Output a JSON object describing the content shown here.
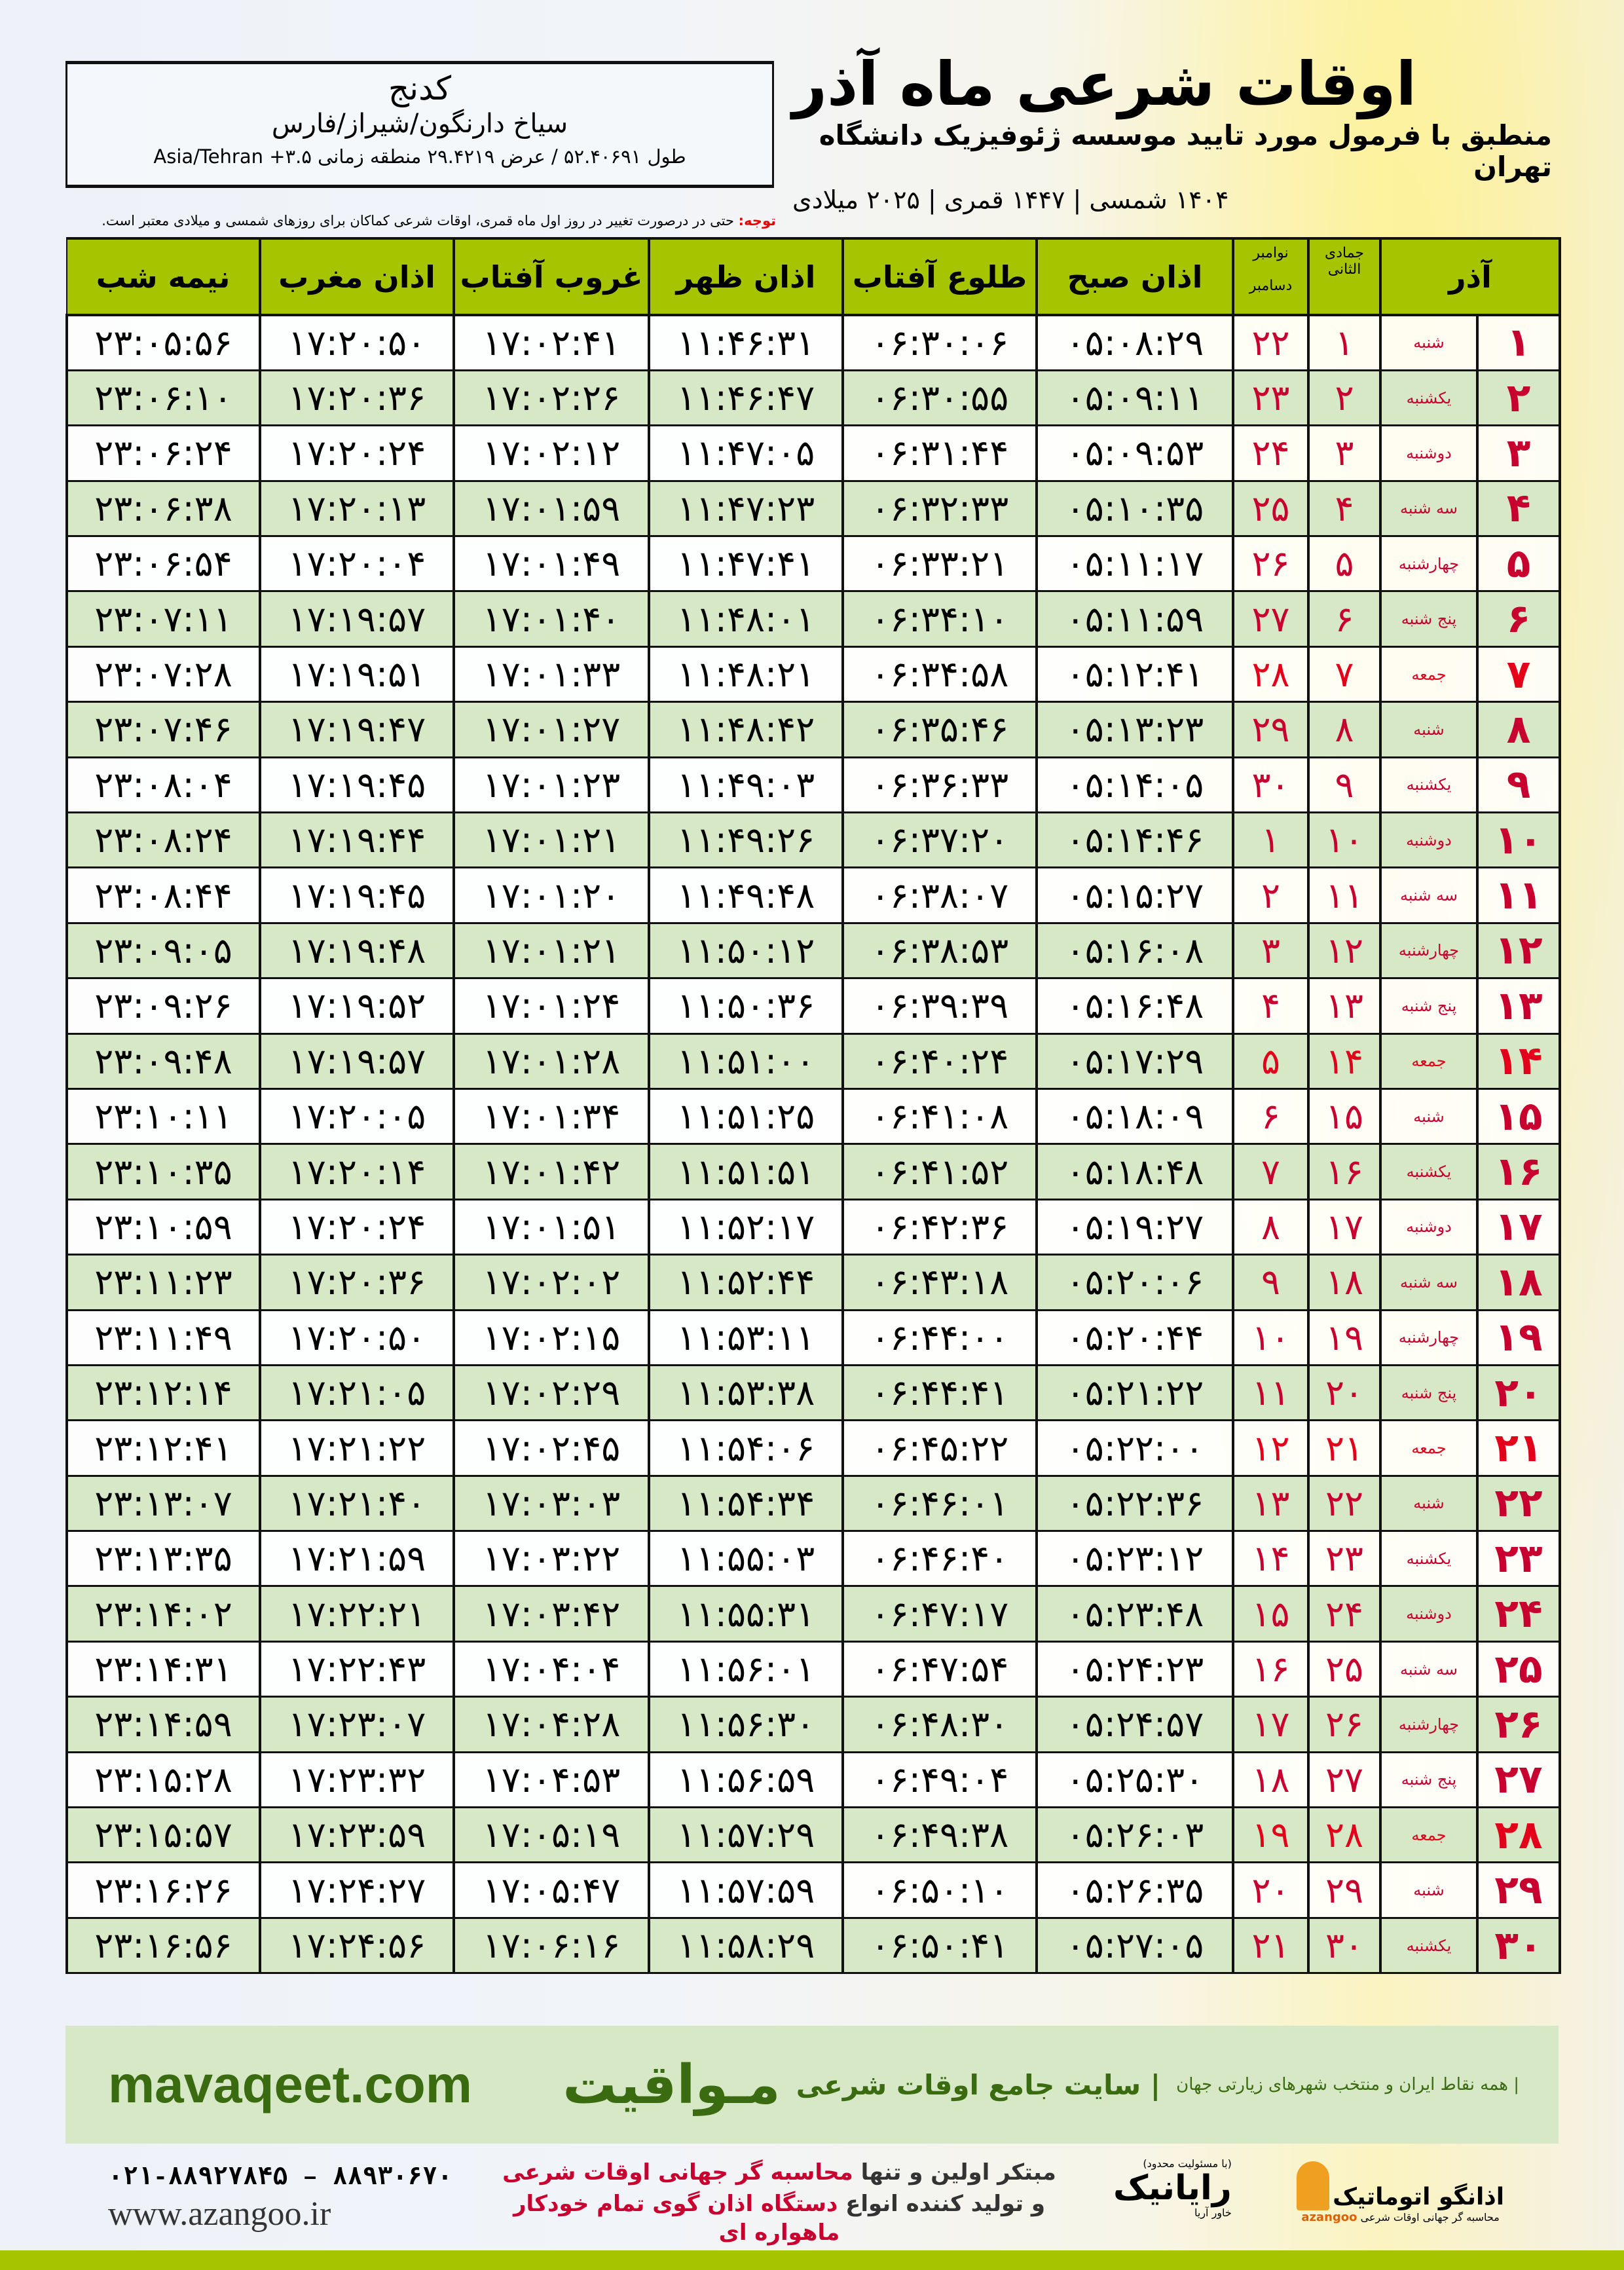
{
  "header": {
    "title": "اوقات شرعی ماه آذر",
    "subtitle": "منطبق با فرمول مورد تایید موسسه ژئوفیزیک دانشگاه تهران",
    "dates": "۱۴۰۴ شمسی | ۱۴۴۷ قمری | ۲۰۲۵ میلادی"
  },
  "location": {
    "name": "کدنج",
    "path": "سیاخ دارنگون/شیراز/فارس",
    "coords": "طول ۵۲.۴۰۶۹۱ / عرض ۲۹.۴۲۱۹ منطقه زمانی ۳.۵+ Asia/Tehran"
  },
  "note": {
    "label": "توجه:",
    "text": " حتی در درصورت تغییر در روز اول ماه قمری، اوقات شرعی کماکان برای روزهای شمسی و میلادی معتبر است."
  },
  "table": {
    "headers": {
      "month": "آذر",
      "hijri": "جمادی الثانی",
      "gregorian": "نوامبر",
      "gregorian2": "دسامبر",
      "fajr": "اذان صبح",
      "sunrise": "طلوع آفتاب",
      "dhuhr": "اذان ظهر",
      "sunset": "غروب آفتاب",
      "maghrib": "اذان مغرب",
      "midnight": "نیمه شب"
    },
    "highlight_color": "#e3001b",
    "header_color": "#a6c500",
    "rows": [
      [
        "۱",
        "شنبه",
        "۱",
        "۲۲",
        "۰۵:۰۸:۲۹",
        "۰۶:۳۰:۰۶",
        "۱۱:۴۶:۳۱",
        "۱۷:۰۲:۴۱",
        "۱۷:۲۰:۵۰",
        "۲۳:۰۵:۵۶"
      ],
      [
        "۲",
        "یکشنبه",
        "۲",
        "۲۳",
        "۰۵:۰۹:۱۱",
        "۰۶:۳۰:۵۵",
        "۱۱:۴۶:۴۷",
        "۱۷:۰۲:۲۶",
        "۱۷:۲۰:۳۶",
        "۲۳:۰۶:۱۰"
      ],
      [
        "۳",
        "دوشنبه",
        "۳",
        "۲۴",
        "۰۵:۰۹:۵۳",
        "۰۶:۳۱:۴۴",
        "۱۱:۴۷:۰۵",
        "۱۷:۰۲:۱۲",
        "۱۷:۲۰:۲۴",
        "۲۳:۰۶:۲۴"
      ],
      [
        "۴",
        "سه شنبه",
        "۴",
        "۲۵",
        "۰۵:۱۰:۳۵",
        "۰۶:۳۲:۳۳",
        "۱۱:۴۷:۲۳",
        "۱۷:۰۱:۵۹",
        "۱۷:۲۰:۱۳",
        "۲۳:۰۶:۳۸"
      ],
      [
        "۵",
        "چهارشنبه",
        "۵",
        "۲۶",
        "۰۵:۱۱:۱۷",
        "۰۶:۳۳:۲۱",
        "۱۱:۴۷:۴۱",
        "۱۷:۰۱:۴۹",
        "۱۷:۲۰:۰۴",
        "۲۳:۰۶:۵۴"
      ],
      [
        "۶",
        "پنج شنبه",
        "۶",
        "۲۷",
        "۰۵:۱۱:۵۹",
        "۰۶:۳۴:۱۰",
        "۱۱:۴۸:۰۱",
        "۱۷:۰۱:۴۰",
        "۱۷:۱۹:۵۷",
        "۲۳:۰۷:۱۱"
      ],
      [
        "۷",
        "جمعه",
        "۷",
        "۲۸",
        "۰۵:۱۲:۴۱",
        "۰۶:۳۴:۵۸",
        "۱۱:۴۸:۲۱",
        "۱۷:۰۱:۳۳",
        "۱۷:۱۹:۵۱",
        "۲۳:۰۷:۲۸"
      ],
      [
        "۸",
        "شنبه",
        "۸",
        "۲۹",
        "۰۵:۱۳:۲۳",
        "۰۶:۳۵:۴۶",
        "۱۱:۴۸:۴۲",
        "۱۷:۰۱:۲۷",
        "۱۷:۱۹:۴۷",
        "۲۳:۰۷:۴۶"
      ],
      [
        "۹",
        "یکشنبه",
        "۹",
        "۳۰",
        "۰۵:۱۴:۰۵",
        "۰۶:۳۶:۳۳",
        "۱۱:۴۹:۰۳",
        "۱۷:۰۱:۲۳",
        "۱۷:۱۹:۴۵",
        "۲۳:۰۸:۰۴"
      ],
      [
        "۱۰",
        "دوشنبه",
        "۱۰",
        "۱",
        "۰۵:۱۴:۴۶",
        "۰۶:۳۷:۲۰",
        "۱۱:۴۹:۲۶",
        "۱۷:۰۱:۲۱",
        "۱۷:۱۹:۴۴",
        "۲۳:۰۸:۲۴"
      ],
      [
        "۱۱",
        "سه شنبه",
        "۱۱",
        "۲",
        "۰۵:۱۵:۲۷",
        "۰۶:۳۸:۰۷",
        "۱۱:۴۹:۴۸",
        "۱۷:۰۱:۲۰",
        "۱۷:۱۹:۴۵",
        "۲۳:۰۸:۴۴"
      ],
      [
        "۱۲",
        "چهارشنبه",
        "۱۲",
        "۳",
        "۰۵:۱۶:۰۸",
        "۰۶:۳۸:۵۳",
        "۱۱:۵۰:۱۲",
        "۱۷:۰۱:۲۱",
        "۱۷:۱۹:۴۸",
        "۲۳:۰۹:۰۵"
      ],
      [
        "۱۳",
        "پنج شنبه",
        "۱۳",
        "۴",
        "۰۵:۱۶:۴۸",
        "۰۶:۳۹:۳۹",
        "۱۱:۵۰:۳۶",
        "۱۷:۰۱:۲۴",
        "۱۷:۱۹:۵۲",
        "۲۳:۰۹:۲۶"
      ],
      [
        "۱۴",
        "جمعه",
        "۱۴",
        "۵",
        "۰۵:۱۷:۲۹",
        "۰۶:۴۰:۲۴",
        "۱۱:۵۱:۰۰",
        "۱۷:۰۱:۲۸",
        "۱۷:۱۹:۵۷",
        "۲۳:۰۹:۴۸"
      ],
      [
        "۱۵",
        "شنبه",
        "۱۵",
        "۶",
        "۰۵:۱۸:۰۹",
        "۰۶:۴۱:۰۸",
        "۱۱:۵۱:۲۵",
        "۱۷:۰۱:۳۴",
        "۱۷:۲۰:۰۵",
        "۲۳:۱۰:۱۱"
      ],
      [
        "۱۶",
        "یکشنبه",
        "۱۶",
        "۷",
        "۰۵:۱۸:۴۸",
        "۰۶:۴۱:۵۲",
        "۱۱:۵۱:۵۱",
        "۱۷:۰۱:۴۲",
        "۱۷:۲۰:۱۴",
        "۲۳:۱۰:۳۵"
      ],
      [
        "۱۷",
        "دوشنبه",
        "۱۷",
        "۸",
        "۰۵:۱۹:۲۷",
        "۰۶:۴۲:۳۶",
        "۱۱:۵۲:۱۷",
        "۱۷:۰۱:۵۱",
        "۱۷:۲۰:۲۴",
        "۲۳:۱۰:۵۹"
      ],
      [
        "۱۸",
        "سه شنبه",
        "۱۸",
        "۹",
        "۰۵:۲۰:۰۶",
        "۰۶:۴۳:۱۸",
        "۱۱:۵۲:۴۴",
        "۱۷:۰۲:۰۲",
        "۱۷:۲۰:۳۶",
        "۲۳:۱۱:۲۳"
      ],
      [
        "۱۹",
        "چهارشنبه",
        "۱۹",
        "۱۰",
        "۰۵:۲۰:۴۴",
        "۰۶:۴۴:۰۰",
        "۱۱:۵۳:۱۱",
        "۱۷:۰۲:۱۵",
        "۱۷:۲۰:۵۰",
        "۲۳:۱۱:۴۹"
      ],
      [
        "۲۰",
        "پنج شنبه",
        "۲۰",
        "۱۱",
        "۰۵:۲۱:۲۲",
        "۰۶:۴۴:۴۱",
        "۱۱:۵۳:۳۸",
        "۱۷:۰۲:۲۹",
        "۱۷:۲۱:۰۵",
        "۲۳:۱۲:۱۴"
      ],
      [
        "۲۱",
        "جمعه",
        "۲۱",
        "۱۲",
        "۰۵:۲۲:۰۰",
        "۰۶:۴۵:۲۲",
        "۱۱:۵۴:۰۶",
        "۱۷:۰۲:۴۵",
        "۱۷:۲۱:۲۲",
        "۲۳:۱۲:۴۱"
      ],
      [
        "۲۲",
        "شنبه",
        "۲۲",
        "۱۳",
        "۰۵:۲۲:۳۶",
        "۰۶:۴۶:۰۱",
        "۱۱:۵۴:۳۴",
        "۱۷:۰۳:۰۳",
        "۱۷:۲۱:۴۰",
        "۲۳:۱۳:۰۷"
      ],
      [
        "۲۳",
        "یکشنبه",
        "۲۳",
        "۱۴",
        "۰۵:۲۳:۱۲",
        "۰۶:۴۶:۴۰",
        "۱۱:۵۵:۰۳",
        "۱۷:۰۳:۲۲",
        "۱۷:۲۱:۵۹",
        "۲۳:۱۳:۳۵"
      ],
      [
        "۲۴",
        "دوشنبه",
        "۲۴",
        "۱۵",
        "۰۵:۲۳:۴۸",
        "۰۶:۴۷:۱۷",
        "۱۱:۵۵:۳۱",
        "۱۷:۰۳:۴۲",
        "۱۷:۲۲:۲۱",
        "۲۳:۱۴:۰۲"
      ],
      [
        "۲۵",
        "سه شنبه",
        "۲۵",
        "۱۶",
        "۰۵:۲۴:۲۳",
        "۰۶:۴۷:۵۴",
        "۱۱:۵۶:۰۱",
        "۱۷:۰۴:۰۴",
        "۱۷:۲۲:۴۳",
        "۲۳:۱۴:۳۱"
      ],
      [
        "۲۶",
        "چهارشنبه",
        "۲۶",
        "۱۷",
        "۰۵:۲۴:۵۷",
        "۰۶:۴۸:۳۰",
        "۱۱:۵۶:۳۰",
        "۱۷:۰۴:۲۸",
        "۱۷:۲۳:۰۷",
        "۲۳:۱۴:۵۹"
      ],
      [
        "۲۷",
        "پنج شنبه",
        "۲۷",
        "۱۸",
        "۰۵:۲۵:۳۰",
        "۰۶:۴۹:۰۴",
        "۱۱:۵۶:۵۹",
        "۱۷:۰۴:۵۳",
        "۱۷:۲۳:۳۲",
        "۲۳:۱۵:۲۸"
      ],
      [
        "۲۸",
        "جمعه",
        "۲۸",
        "۱۹",
        "۰۵:۲۶:۰۳",
        "۰۶:۴۹:۳۸",
        "۱۱:۵۷:۲۹",
        "۱۷:۰۵:۱۹",
        "۱۷:۲۳:۵۹",
        "۲۳:۱۵:۵۷"
      ],
      [
        "۲۹",
        "شنبه",
        "۲۹",
        "۲۰",
        "۰۵:۲۶:۳۵",
        "۰۶:۵۰:۱۰",
        "۱۱:۵۷:۵۹",
        "۱۷:۰۵:۴۷",
        "۱۷:۲۴:۲۷",
        "۲۳:۱۶:۲۶"
      ],
      [
        "۳۰",
        "یکشنبه",
        "۳۰",
        "۲۱",
        "۰۵:۲۷:۰۵",
        "۰۶:۵۰:۴۱",
        "۱۱:۵۸:۲۹",
        "۱۷:۰۶:۱۶",
        "۱۷:۲۴:۵۶",
        "۲۳:۱۶:۵۶"
      ]
    ]
  },
  "banner": {
    "brand": "مـواقیت",
    "tagline": "| سایت جامع اوقات شرعی",
    "tagline2": "| همه نقاط ایران و منتخب شهرهای زیارتی جهان",
    "site": "mavaqeet.com"
  },
  "footer": {
    "phone": "۰۲۱-۸۸۹۲۷۸۴۵ – ۸۸۹۳۰۶۷۰",
    "web": "www.azangoo.ir",
    "promo1_a": "مبتکر اولین و تنها ",
    "promo1_b": "محاسبه گر جهانی اوقات شرعی",
    "promo2_a": "و تولید کننده انواع ",
    "promo2_b": "دستگاه اذان گوی تمام خودکار ماهواره ای",
    "logo_rayanik": "رایانیک",
    "logo_rayanik_sub": "خاور آریا",
    "logo_rayanik_note": "(با مسئولیت محدود)",
    "logo_azangoo": "اذانگو اتوماتیک",
    "logo_azangoo_sub": "محاسبه گر جهانی اوقات شرعی",
    "logo_azangoo_en": "azangoo"
  }
}
